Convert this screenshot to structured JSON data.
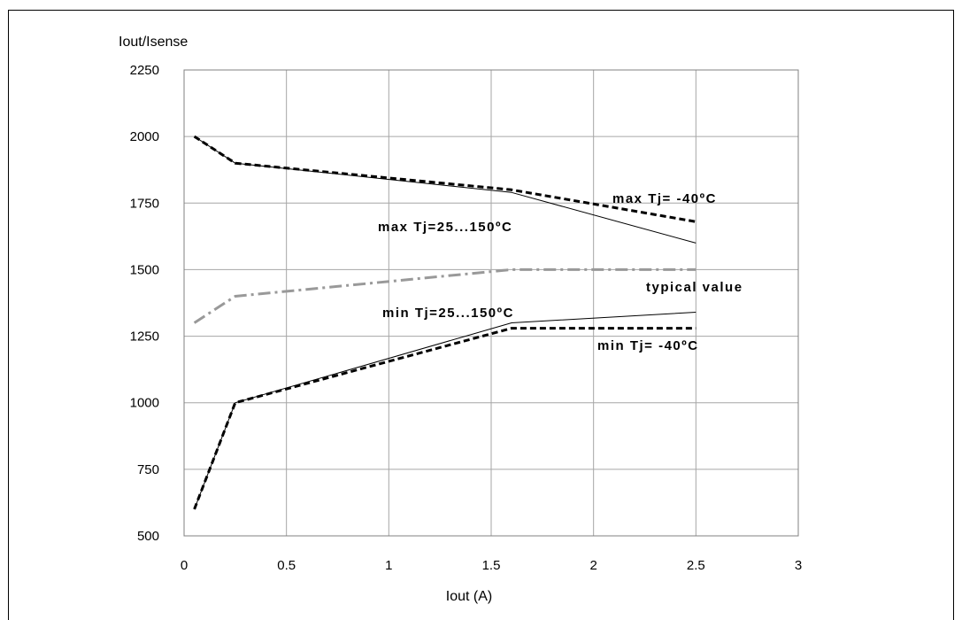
{
  "chart_data": {
    "type": "line",
    "xlabel": "Iout (A)",
    "ylabel": "Iout/Isense",
    "xlim": [
      0,
      3
    ],
    "ylim": [
      500,
      2250
    ],
    "xticks": [
      0,
      0.5,
      1,
      1.5,
      2,
      2.5,
      3
    ],
    "yticks": [
      500,
      750,
      1000,
      1250,
      1500,
      1750,
      2000,
      2250
    ],
    "xtick_labels": [
      "0",
      "0.5",
      "1",
      "1.5",
      "2",
      "2.5",
      "3"
    ],
    "ytick_labels": [
      "500",
      "750",
      "1000",
      "1250",
      "1500",
      "1750",
      "2000",
      "2250"
    ],
    "grid": true,
    "legend": "none",
    "series": [
      {
        "name": "max Tj= -40ºC",
        "style": "dashed-bold",
        "color": "#000000",
        "points": [
          [
            0.05,
            2000
          ],
          [
            0.25,
            1900
          ],
          [
            1.6,
            1800
          ],
          [
            2.5,
            1680
          ]
        ]
      },
      {
        "name": "max Tj=25...150ºC",
        "style": "solid-thin",
        "color": "#000000",
        "points": [
          [
            0.05,
            2000
          ],
          [
            0.25,
            1900
          ],
          [
            1.6,
            1790
          ],
          [
            2.5,
            1600
          ]
        ]
      },
      {
        "name": "typical value",
        "style": "dashdot",
        "color": "#999999",
        "points": [
          [
            0.05,
            1300
          ],
          [
            0.25,
            1400
          ],
          [
            1.6,
            1500
          ],
          [
            2.5,
            1500
          ]
        ]
      },
      {
        "name": "min Tj=25...150ºC",
        "style": "solid-thin",
        "color": "#000000",
        "points": [
          [
            0.05,
            600
          ],
          [
            0.25,
            1000
          ],
          [
            1.6,
            1300
          ],
          [
            2.5,
            1340
          ]
        ]
      },
      {
        "name": "min Tj= -40ºC",
        "style": "dashed-bold",
        "color": "#000000",
        "points": [
          [
            0.05,
            600
          ],
          [
            0.25,
            1000
          ],
          [
            1.6,
            1280
          ],
          [
            2.5,
            1280
          ]
        ]
      }
    ],
    "annotations": [
      {
        "text": "max Tj= -40ºC"
      },
      {
        "text": "max Tj=25...150ºC"
      },
      {
        "text": "typical value"
      },
      {
        "text": "min Tj=25...150ºC"
      },
      {
        "text": "min Tj= -40ºC"
      }
    ]
  }
}
